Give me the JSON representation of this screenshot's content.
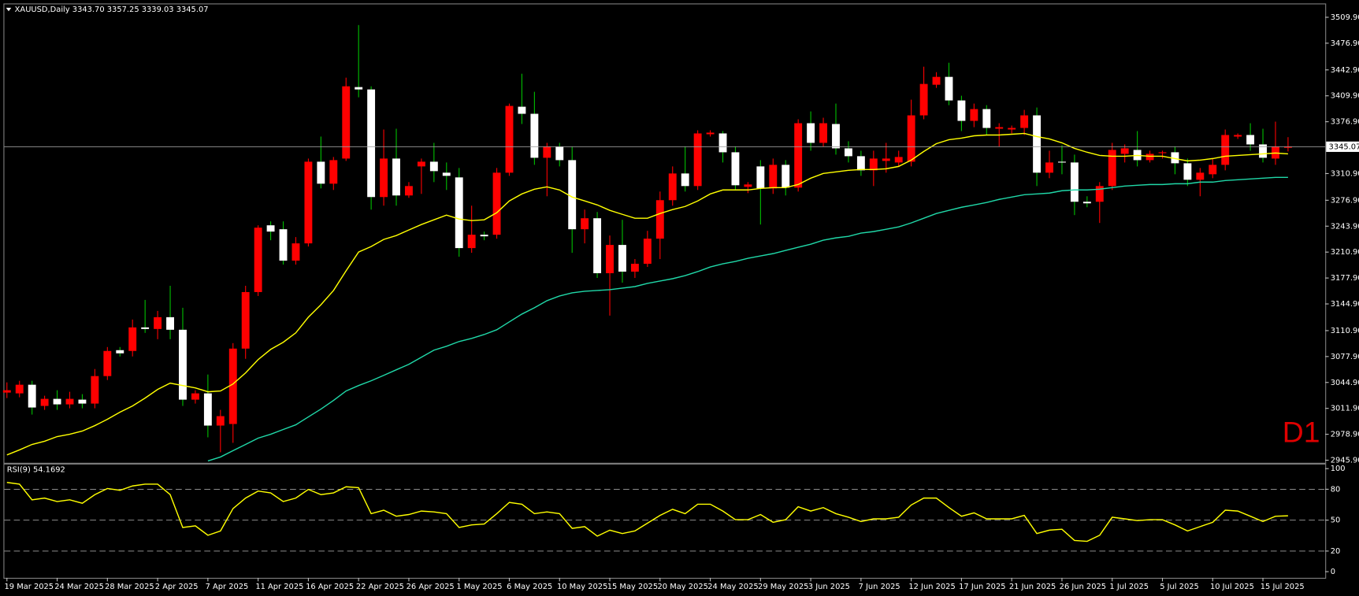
{
  "chart_data": [
    {
      "type": "candlestick",
      "title": "XAUUSD,Daily  3343.70 3357.25 3339.03 3345.07",
      "annotation": "D1",
      "categories": [
        "19 Mar 2025",
        null,
        null,
        null,
        "24 Mar 2025",
        null,
        null,
        null,
        "28 Mar 2025",
        null,
        null,
        null,
        "2 Apr 2025",
        null,
        null,
        null,
        "7 Apr 2025",
        null,
        null,
        null,
        "11 Apr 2025",
        null,
        null,
        null,
        "16 Apr 2025",
        null,
        null,
        null,
        "22 Apr 2025",
        null,
        null,
        null,
        "26 Apr 2025",
        null,
        null,
        null,
        "1 May 2025",
        null,
        null,
        null,
        "6 May 2025",
        null,
        null,
        null,
        "10 May 2025",
        null,
        null,
        null,
        "15 May 2025",
        null,
        null,
        null,
        "20 May 2025",
        null,
        null,
        null,
        "24 May 2025",
        null,
        null,
        null,
        "29 May 2025",
        null,
        null,
        null,
        "3 Jun 2025",
        null,
        null,
        null,
        "7 Jun 2025",
        null,
        null,
        null,
        "12 Jun 2025",
        null,
        null,
        null,
        "17 Jun 2025",
        null,
        null,
        null,
        "21 Jun 2025",
        null,
        null,
        null,
        "26 Jun 2025",
        null,
        null,
        null,
        "1 Jul 2025",
        null,
        null,
        null,
        "5 Jul 2025",
        null,
        null,
        null,
        "10 Jul 2025",
        null,
        null,
        null,
        "15 Jul 2025",
        null,
        null
      ],
      "open": [
        3032,
        3031,
        3042,
        3015,
        3024,
        3017,
        3023,
        3018,
        3053,
        3086,
        3085,
        3115,
        3113,
        3128,
        3112,
        3023,
        3031,
        2990,
        2992,
        3088,
        3160,
        3245,
        3240,
        3200,
        3222,
        3326,
        3298,
        3330,
        3421,
        3418,
        3281,
        3330,
        3283,
        3320,
        3326,
        3312,
        3306,
        3216,
        3233,
        3233,
        3312,
        3396,
        3387,
        3331,
        3345,
        3328,
        3240,
        3254,
        3184,
        3220,
        3186,
        3196,
        3228,
        3277,
        3311,
        3295,
        3361,
        3362,
        3338,
        3294,
        3320,
        3292,
        3322,
        3293,
        3375,
        3350,
        3374,
        3343,
        3333,
        3315,
        3327,
        3325,
        3326,
        3385,
        3424,
        3434,
        3404,
        3378,
        3393,
        3368,
        3367,
        3369,
        3385,
        3312,
        3326,
        3325,
        3275,
        3275,
        3295,
        3336,
        3341,
        3328,
        3337,
        3338,
        3324,
        3303,
        3310,
        3322,
        3358,
        3360,
        3348,
        3330,
        3343.7
      ],
      "high": [
        3045,
        3047,
        3047,
        3028,
        3035,
        3033,
        3030,
        3062,
        3090,
        3090,
        3125,
        3150,
        3136,
        3168,
        3140,
        3035,
        3055,
        3010,
        3095,
        3168,
        3245,
        3250,
        3250,
        3230,
        3330,
        3358,
        3332,
        3433,
        3500,
        3422,
        3367,
        3368,
        3300,
        3330,
        3350,
        3325,
        3318,
        3270,
        3237,
        3318,
        3400,
        3438,
        3415,
        3350,
        3350,
        3345,
        3265,
        3262,
        3232,
        3252,
        3202,
        3238,
        3288,
        3320,
        3345,
        3366,
        3366,
        3365,
        3345,
        3300,
        3328,
        3330,
        3328,
        3380,
        3390,
        3382,
        3400,
        3352,
        3340,
        3340,
        3350,
        3340,
        3405,
        3447,
        3440,
        3452,
        3410,
        3400,
        3398,
        3375,
        3372,
        3392,
        3395,
        3340,
        3347,
        3335,
        3282,
        3300,
        3350,
        3348,
        3365,
        3340,
        3340,
        3345,
        3330,
        3318,
        3330,
        3367,
        3362,
        3375,
        3368,
        3377,
        3357.25
      ],
      "low": [
        3025,
        3026,
        3004,
        3010,
        3010,
        3012,
        3012,
        3012,
        3048,
        3078,
        3078,
        3108,
        3100,
        3100,
        3015,
        3018,
        2975,
        2956,
        2968,
        3075,
        3155,
        3226,
        3195,
        3195,
        3218,
        3292,
        3290,
        3327,
        3408,
        3265,
        3270,
        3270,
        3280,
        3285,
        3300,
        3290,
        3205,
        3210,
        3226,
        3228,
        3308,
        3374,
        3322,
        3282,
        3320,
        3210,
        3222,
        3178,
        3130,
        3172,
        3178,
        3192,
        3202,
        3270,
        3288,
        3290,
        3358,
        3325,
        3290,
        3286,
        3246,
        3285,
        3283,
        3288,
        3340,
        3345,
        3335,
        3325,
        3308,
        3295,
        3312,
        3320,
        3320,
        3380,
        3420,
        3398,
        3365,
        3370,
        3360,
        3345,
        3362,
        3360,
        3295,
        3305,
        3310,
        3258,
        3268,
        3248,
        3290,
        3325,
        3320,
        3325,
        3330,
        3310,
        3295,
        3282,
        3305,
        3315,
        3355,
        3340,
        3325,
        3322,
        3339.03
      ],
      "close": [
        3035,
        3042,
        3013,
        3024,
        3017,
        3024,
        3018,
        3053,
        3085,
        3082,
        3115,
        3113,
        3128,
        3112,
        3023,
        3031,
        2990,
        3002,
        3088,
        3160,
        3242,
        3237,
        3200,
        3222,
        3326,
        3298,
        3328,
        3422,
        3418,
        3281,
        3330,
        3283,
        3295,
        3326,
        3314,
        3308,
        3216,
        3233,
        3231,
        3312,
        3397,
        3387,
        3331,
        3345,
        3328,
        3240,
        3254,
        3184,
        3220,
        3186,
        3196,
        3228,
        3277,
        3311,
        3295,
        3362,
        3363,
        3338,
        3296,
        3297,
        3292,
        3322,
        3293,
        3375,
        3350,
        3375,
        3343,
        3333,
        3315,
        3330,
        3330,
        3332,
        3385,
        3425,
        3434,
        3404,
        3378,
        3393,
        3369,
        3370,
        3369,
        3385,
        3312,
        3325,
        3325,
        3275,
        3273,
        3295,
        3341,
        3343,
        3328,
        3336,
        3338,
        3324,
        3303,
        3312,
        3322,
        3360,
        3360,
        3348,
        3331,
        3345,
        3345.07
      ],
      "up_color": "#ff0000",
      "down_color": "#ffffff",
      "wick_up_color": "#ff0000",
      "wick_down_color": "#00c000",
      "overlays": [
        {
          "color": "#ffff00",
          "values": [
            2952.6,
            2959,
            2966,
            2970,
            2976,
            2979,
            2983,
            2990,
            2998,
            3007,
            3015,
            3025,
            3036,
            3044,
            3041,
            3038,
            3033,
            3034,
            3043,
            3057,
            3074,
            3087,
            3096,
            3108,
            3128,
            3144,
            3162,
            3187,
            3211,
            3218,
            3227,
            3232,
            3239,
            3246,
            3252,
            3258,
            3253,
            3251,
            3252,
            3261,
            3276,
            3285,
            3291,
            3294,
            3290,
            3281,
            3276,
            3271,
            3264,
            3259,
            3254,
            3254,
            3260,
            3265,
            3269,
            3276,
            3285,
            3290,
            3290,
            3290,
            3292,
            3293,
            3293,
            3297,
            3305,
            3311,
            3313,
            3315,
            3316,
            3316,
            3317,
            3320,
            3328,
            3339,
            3349,
            3354,
            3356,
            3359,
            3360,
            3360,
            3361,
            3362,
            3358,
            3355,
            3350,
            3343,
            3338,
            3334,
            3333,
            3333,
            3334,
            3333,
            3333,
            3330,
            3327,
            3328,
            3330,
            3333,
            3334,
            3335,
            3336,
            3337,
            3336
          ]
        },
        {
          "color": "#20d8a8",
          "values": [
            null,
            null,
            null,
            null,
            null,
            null,
            null,
            null,
            null,
            null,
            null,
            null,
            null,
            null,
            null,
            null,
            2945,
            2950,
            2958,
            2966,
            2974,
            2979,
            2985,
            2991,
            3001,
            3011,
            3022,
            3034,
            3041,
            3047,
            3054,
            3061,
            3068,
            3077,
            3086,
            3091,
            3097,
            3101,
            3106,
            3112,
            3122,
            3132,
            3140,
            3149,
            3155,
            3159,
            3161,
            3162,
            3163,
            3165,
            3167,
            3171,
            3174,
            3177,
            3181,
            3186,
            3192,
            3196,
            3199,
            3203,
            3206,
            3209,
            3213,
            3217,
            3221,
            3226,
            3229,
            3231,
            3235,
            3237,
            3240,
            3243,
            3248,
            3254,
            3260,
            3264,
            3268,
            3271,
            3274,
            3278,
            3281,
            3284,
            3285,
            3286,
            3289,
            3290,
            3290,
            3291,
            3293,
            3295,
            3296,
            3297,
            3297,
            3298,
            3298,
            3300,
            3300,
            3302,
            3303,
            3304,
            3305,
            3306,
            3306
          ]
        }
      ],
      "price_line": 3345.07,
      "ylim": [
        2942.6,
        3526.4
      ],
      "yticks": [
        {
          "value": 3509.9,
          "label": "3509.90"
        },
        {
          "value": 3476.9,
          "label": "3476.90"
        },
        {
          "value": 3442.9,
          "label": "3442.90"
        },
        {
          "value": 3409.9,
          "label": "3409.90"
        },
        {
          "value": 3376.9,
          "label": "3376.90"
        },
        {
          "value": 3310.9,
          "label": "3310.90"
        },
        {
          "value": 3276.9,
          "label": "3276.90"
        },
        {
          "value": 3243.9,
          "label": "3243.90"
        },
        {
          "value": 3210.9,
          "label": "3210.90"
        },
        {
          "value": 3177.9,
          "label": "3177.90"
        },
        {
          "value": 3144.9,
          "label": "3144.90"
        },
        {
          "value": 3110.9,
          "label": "3110.90"
        },
        {
          "value": 3077.9,
          "label": "3077.90"
        },
        {
          "value": 3044.9,
          "label": "3044.90"
        },
        {
          "value": 3011.9,
          "label": "3011.90"
        },
        {
          "value": 2978.9,
          "label": "2978.90"
        },
        {
          "value": 2945.9,
          "label": "2945.90"
        }
      ]
    },
    {
      "type": "line",
      "title": "RSI(9) 54.1692",
      "color": "#ffff00",
      "values": [
        86.6,
        84.9,
        69.7,
        71.4,
        68.1,
        69.7,
        66.4,
        74.8,
        80.7,
        79.0,
        83.2,
        84.9,
        84.9,
        74.8,
        42.9,
        44.5,
        35.3,
        39.5,
        61.3,
        71.4,
        78.2,
        76.5,
        68.1,
        71.4,
        79.8,
        74.8,
        76.5,
        82.4,
        81.5,
        56.3,
        59.7,
        53.8,
        55.5,
        58.8,
        58.0,
        56.3,
        42.9,
        45.4,
        46.2,
        56.3,
        67.2,
        65.5,
        56.3,
        58.0,
        56.3,
        42.0,
        43.7,
        34.5,
        40.3,
        37.0,
        39.5,
        47.1,
        54.6,
        60.5,
        56.3,
        65.5,
        65.5,
        58.8,
        50.4,
        50.4,
        55.5,
        47.9,
        50.4,
        63.0,
        58.8,
        62.2,
        56.3,
        52.9,
        48.7,
        51.3,
        51.3,
        52.9,
        64.7,
        71.4,
        71.4,
        62.2,
        53.8,
        57.1,
        51.3,
        51.3,
        51.3,
        54.6,
        37.0,
        40.3,
        41.2,
        30.3,
        29.4,
        35.3,
        52.9,
        51.3,
        49.6,
        50.4,
        50.4,
        45.4,
        39.5,
        43.7,
        47.9,
        59.7,
        58.8,
        53.8,
        48.7,
        53.8,
        54.1692
      ],
      "levels": [
        20,
        50,
        80
      ],
      "ylim": [
        -6,
        104
      ],
      "yticks": [
        0,
        20,
        50,
        80,
        100
      ]
    }
  ]
}
